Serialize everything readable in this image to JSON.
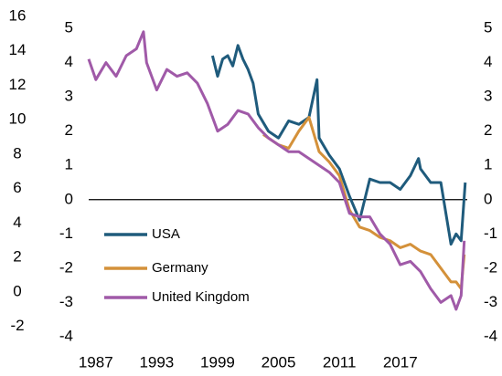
{
  "chart_data": {
    "type": "line",
    "x_outer_note": null,
    "xlim": [
      1986.3,
      2023.6
    ],
    "xticks": [
      1987,
      1993,
      1999,
      2005,
      2011,
      2017
    ],
    "ylim": [
      -4,
      5
    ],
    "yticks": [
      5,
      4,
      3,
      2,
      1,
      0,
      -1,
      -2,
      -3,
      -4
    ],
    "y2lim": [
      -4,
      5
    ],
    "y2ticks": [
      5,
      4,
      3,
      2,
      1,
      0,
      -1,
      -2,
      -3,
      -4
    ],
    "y3lim": [
      -2.6,
      15.3
    ],
    "y3ticks": [
      16,
      14,
      12,
      10,
      8,
      6,
      4,
      2,
      0,
      -2
    ],
    "zero_line": true,
    "series": [
      {
        "name": "USA",
        "color": "#1f5b7c",
        "x": [
          1998.5,
          1999,
          1999.5,
          2000,
          2000.5,
          2001,
          2001.5,
          2002,
          2002.5,
          2003,
          2004,
          2005,
          2006,
          2007,
          2008,
          2008.8,
          2009,
          2010,
          2011,
          2012,
          2013,
          2014,
          2015,
          2016,
          2017,
          2018,
          2018.8,
          2019,
          2020,
          2021,
          2022,
          2022.5,
          2023,
          2023.4
        ],
        "values": [
          4.2,
          3.6,
          4.1,
          4.2,
          3.9,
          4.5,
          4.1,
          3.8,
          3.4,
          2.5,
          2.0,
          1.8,
          2.3,
          2.2,
          2.4,
          3.5,
          1.8,
          1.3,
          0.9,
          0.1,
          -0.6,
          0.6,
          0.5,
          0.5,
          0.3,
          0.7,
          1.2,
          0.9,
          0.5,
          0.5,
          -1.3,
          -1.0,
          -1.2,
          0.5
        ]
      },
      {
        "name": "Germany",
        "color": "#d4913a",
        "x": [
          2003.5,
          2005,
          2006,
          2007,
          2008,
          2009,
          2010,
          2011,
          2012,
          2013,
          2014,
          2015,
          2016,
          2017,
          2018,
          2019,
          2020,
          2021,
          2022,
          2022.5,
          2023,
          2023.3
        ],
        "values": [
          1.9,
          1.6,
          1.5,
          2.0,
          2.4,
          1.4,
          1.1,
          0.7,
          -0.3,
          -0.8,
          -0.9,
          -1.1,
          -1.2,
          -1.4,
          -1.3,
          -1.5,
          -1.6,
          -2.0,
          -2.4,
          -2.4,
          -2.6,
          -1.6
        ]
      },
      {
        "name": "United Kingdom",
        "color": "#a05aa8",
        "x": [
          1986.3,
          1987,
          1988,
          1989,
          1990,
          1991,
          1991.7,
          1992,
          1993,
          1994,
          1995,
          1996,
          1997,
          1998,
          1999,
          2000,
          2001,
          2002,
          2003,
          2004,
          2005,
          2006,
          2007,
          2008,
          2009,
          2010,
          2011,
          2012,
          2013,
          2014,
          2015,
          2016,
          2017,
          2018,
          2019,
          2020,
          2021,
          2022,
          2022.5,
          2023,
          2023.3
        ],
        "values": [
          4.1,
          3.5,
          4.0,
          3.6,
          4.2,
          4.4,
          4.9,
          4.0,
          3.2,
          3.8,
          3.6,
          3.7,
          3.4,
          2.8,
          2.0,
          2.2,
          2.6,
          2.5,
          2.1,
          1.8,
          1.6,
          1.4,
          1.4,
          1.2,
          1.0,
          0.8,
          0.5,
          -0.4,
          -0.5,
          -0.5,
          -1.0,
          -1.3,
          -1.9,
          -1.8,
          -2.1,
          -2.6,
          -3.0,
          -2.8,
          -3.2,
          -2.8,
          -1.2
        ]
      }
    ]
  }
}
